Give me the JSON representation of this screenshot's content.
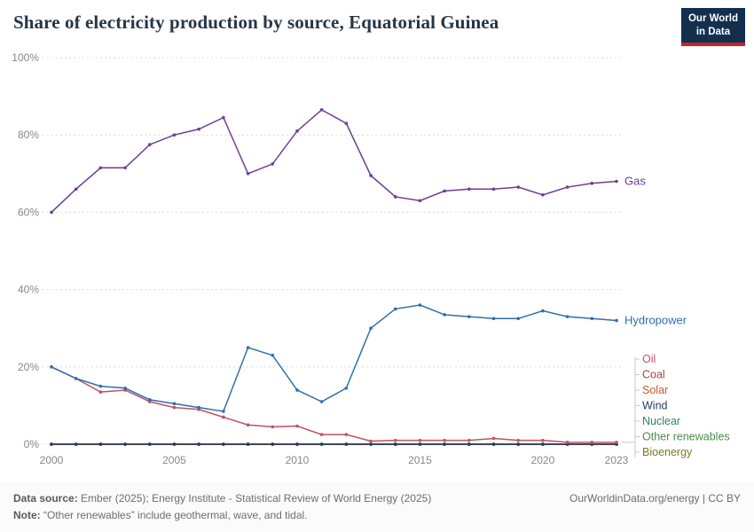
{
  "header": {
    "title": "Share of electricity production by source, Equatorial Guinea",
    "logo": {
      "line1": "Our World",
      "line2": "in Data",
      "bg_color": "#12304E",
      "accent_color": "#CB2024"
    }
  },
  "chart_data": {
    "type": "line",
    "title": "Share of electricity production by source, Equatorial Guinea",
    "xlabel": "",
    "ylabel": "",
    "ylim": [
      0,
      100
    ],
    "y_ticks": [
      0,
      20,
      40,
      60,
      80,
      100
    ],
    "y_tick_suffix": "%",
    "x_ticks": [
      2000,
      2005,
      2010,
      2015,
      2020,
      2023
    ],
    "grid": "horizontal-dashed",
    "legend_position": "right-end-labels",
    "x": [
      2000,
      2001,
      2002,
      2003,
      2004,
      2005,
      2006,
      2007,
      2008,
      2009,
      2010,
      2011,
      2012,
      2013,
      2014,
      2015,
      2016,
      2017,
      2018,
      2019,
      2020,
      2021,
      2022,
      2023
    ],
    "series": [
      {
        "name": "Gas",
        "color": "#6D3E91",
        "values": [
          60,
          66,
          71.5,
          71.5,
          77.5,
          80,
          81.5,
          84.5,
          70,
          72.5,
          81,
          86.5,
          83,
          69.5,
          64,
          63,
          65.5,
          66,
          66,
          66.5,
          64.5,
          66.5,
          67.5,
          68
        ]
      },
      {
        "name": "Hydropower",
        "color": "#2E6FAB",
        "values": [
          20,
          17,
          15,
          14.5,
          11.5,
          10.5,
          9.5,
          8.5,
          25,
          23,
          14,
          11,
          14.5,
          30,
          35,
          36,
          33.5,
          33,
          32.5,
          32.5,
          34.5,
          33,
          32.5,
          32
        ]
      },
      {
        "name": "Oil",
        "color": "#C15065",
        "values": [
          20,
          17,
          13.5,
          14,
          11,
          9.5,
          9,
          7,
          5,
          4.5,
          4.7,
          2.5,
          2.5,
          0.8,
          1,
          1,
          1,
          1,
          1.5,
          1,
          1,
          0.5,
          0.5,
          0.5
        ]
      },
      {
        "name": "Coal",
        "color": "#9B4640",
        "values": [
          0,
          0,
          0,
          0,
          0,
          0,
          0,
          0,
          0,
          0,
          0,
          0,
          0,
          0,
          0,
          0,
          0,
          0,
          0,
          0,
          0,
          0,
          0,
          0
        ]
      },
      {
        "name": "Solar",
        "color": "#CE5A2A",
        "values": [
          0,
          0,
          0,
          0,
          0,
          0,
          0,
          0,
          0,
          0,
          0,
          0,
          0,
          0,
          0,
          0,
          0,
          0,
          0,
          0,
          0,
          0,
          0,
          0
        ]
      },
      {
        "name": "Wind",
        "color": "#1D3D63",
        "values": [
          0,
          0,
          0,
          0,
          0,
          0,
          0,
          0,
          0,
          0,
          0,
          0,
          0,
          0,
          0,
          0,
          0,
          0,
          0,
          0,
          0,
          0,
          0,
          0
        ]
      },
      {
        "name": "Nuclear",
        "color": "#2C8465",
        "values": [
          0,
          0,
          0,
          0,
          0,
          0,
          0,
          0,
          0,
          0,
          0,
          0,
          0,
          0,
          0,
          0,
          0,
          0,
          0,
          0,
          0,
          0,
          0,
          0
        ]
      },
      {
        "name": "Other renewables",
        "color": "#4C8A4C",
        "values": [
          0,
          0,
          0,
          0,
          0,
          0,
          0,
          0,
          0,
          0,
          0,
          0,
          0,
          0,
          0,
          0,
          0,
          0,
          0,
          0,
          0,
          0,
          0,
          0
        ]
      },
      {
        "name": "Bioenergy",
        "color": "#7C7A28",
        "values": [
          0,
          0,
          0,
          0,
          0,
          0,
          0,
          0,
          0,
          0,
          0,
          0,
          0,
          0,
          0,
          0,
          0,
          0,
          0,
          0,
          0,
          0,
          0,
          0
        ]
      }
    ]
  },
  "footer": {
    "source_label": "Data source:",
    "source_text": " Ember (2025); Energy Institute - Statistical Review of World Energy (2025)",
    "note_label": "Note:",
    "note_text": " “Other renewables” include geothermal, wave, and tidal.",
    "link": "OurWorldinData.org/energy | CC BY"
  }
}
